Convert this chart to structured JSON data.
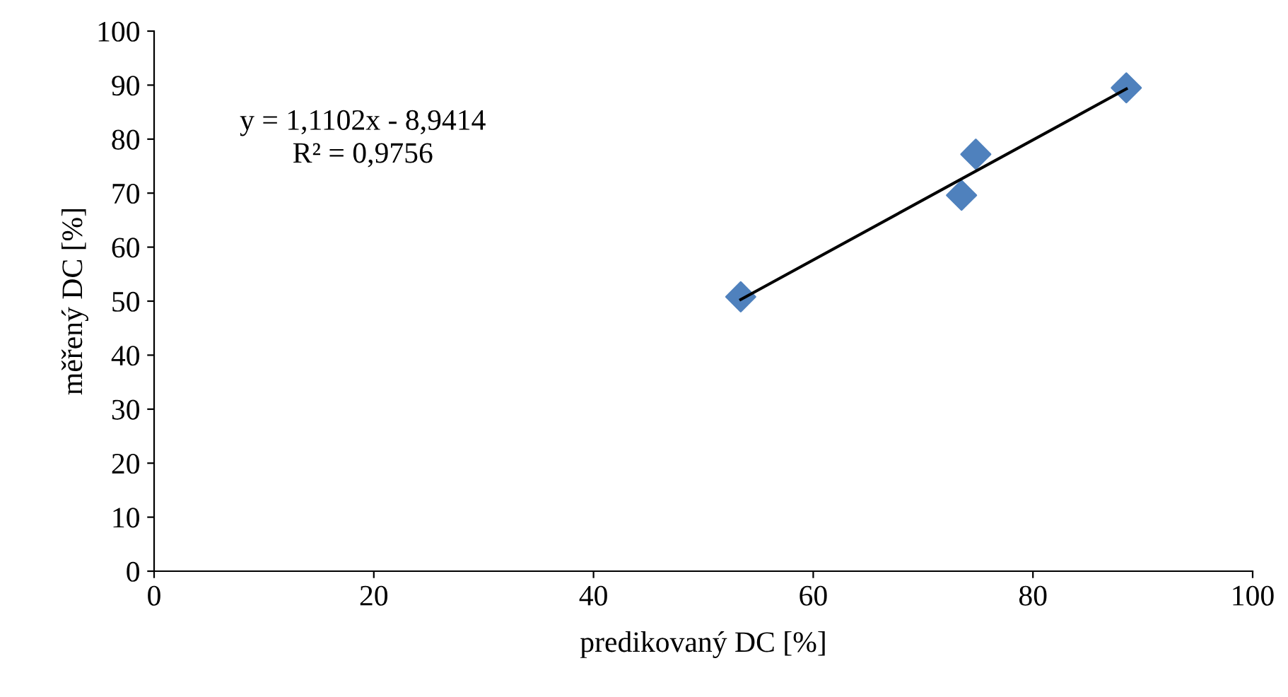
{
  "chart_data": {
    "type": "scatter",
    "xlabel": "predikovaný DC [%]",
    "ylabel": "měřený DC [%]",
    "xlim": [
      0,
      100
    ],
    "xticks": [
      0,
      20,
      40,
      60,
      80,
      100
    ],
    "ylim": [
      0,
      100
    ],
    "yticks": [
      0,
      10,
      20,
      30,
      40,
      50,
      60,
      70,
      80,
      90,
      100
    ],
    "grid": false,
    "legend": false,
    "series": [
      {
        "color": "#4f81bd",
        "marker": "diamond",
        "x": [
          53.4,
          73.5,
          74.8,
          88.5
        ],
        "values": [
          50.8,
          69.6,
          77.2,
          89.5
        ]
      },
      {
        "type": "line",
        "color": "#000000",
        "x": [
          53.4,
          88.5
        ],
        "values": [
          50.3,
          89.3
        ],
        "line_style": "solid"
      }
    ],
    "annotations": [
      {
        "text": "y = 1,1102x - 8,9414\nR² = 0,9756"
      }
    ]
  }
}
